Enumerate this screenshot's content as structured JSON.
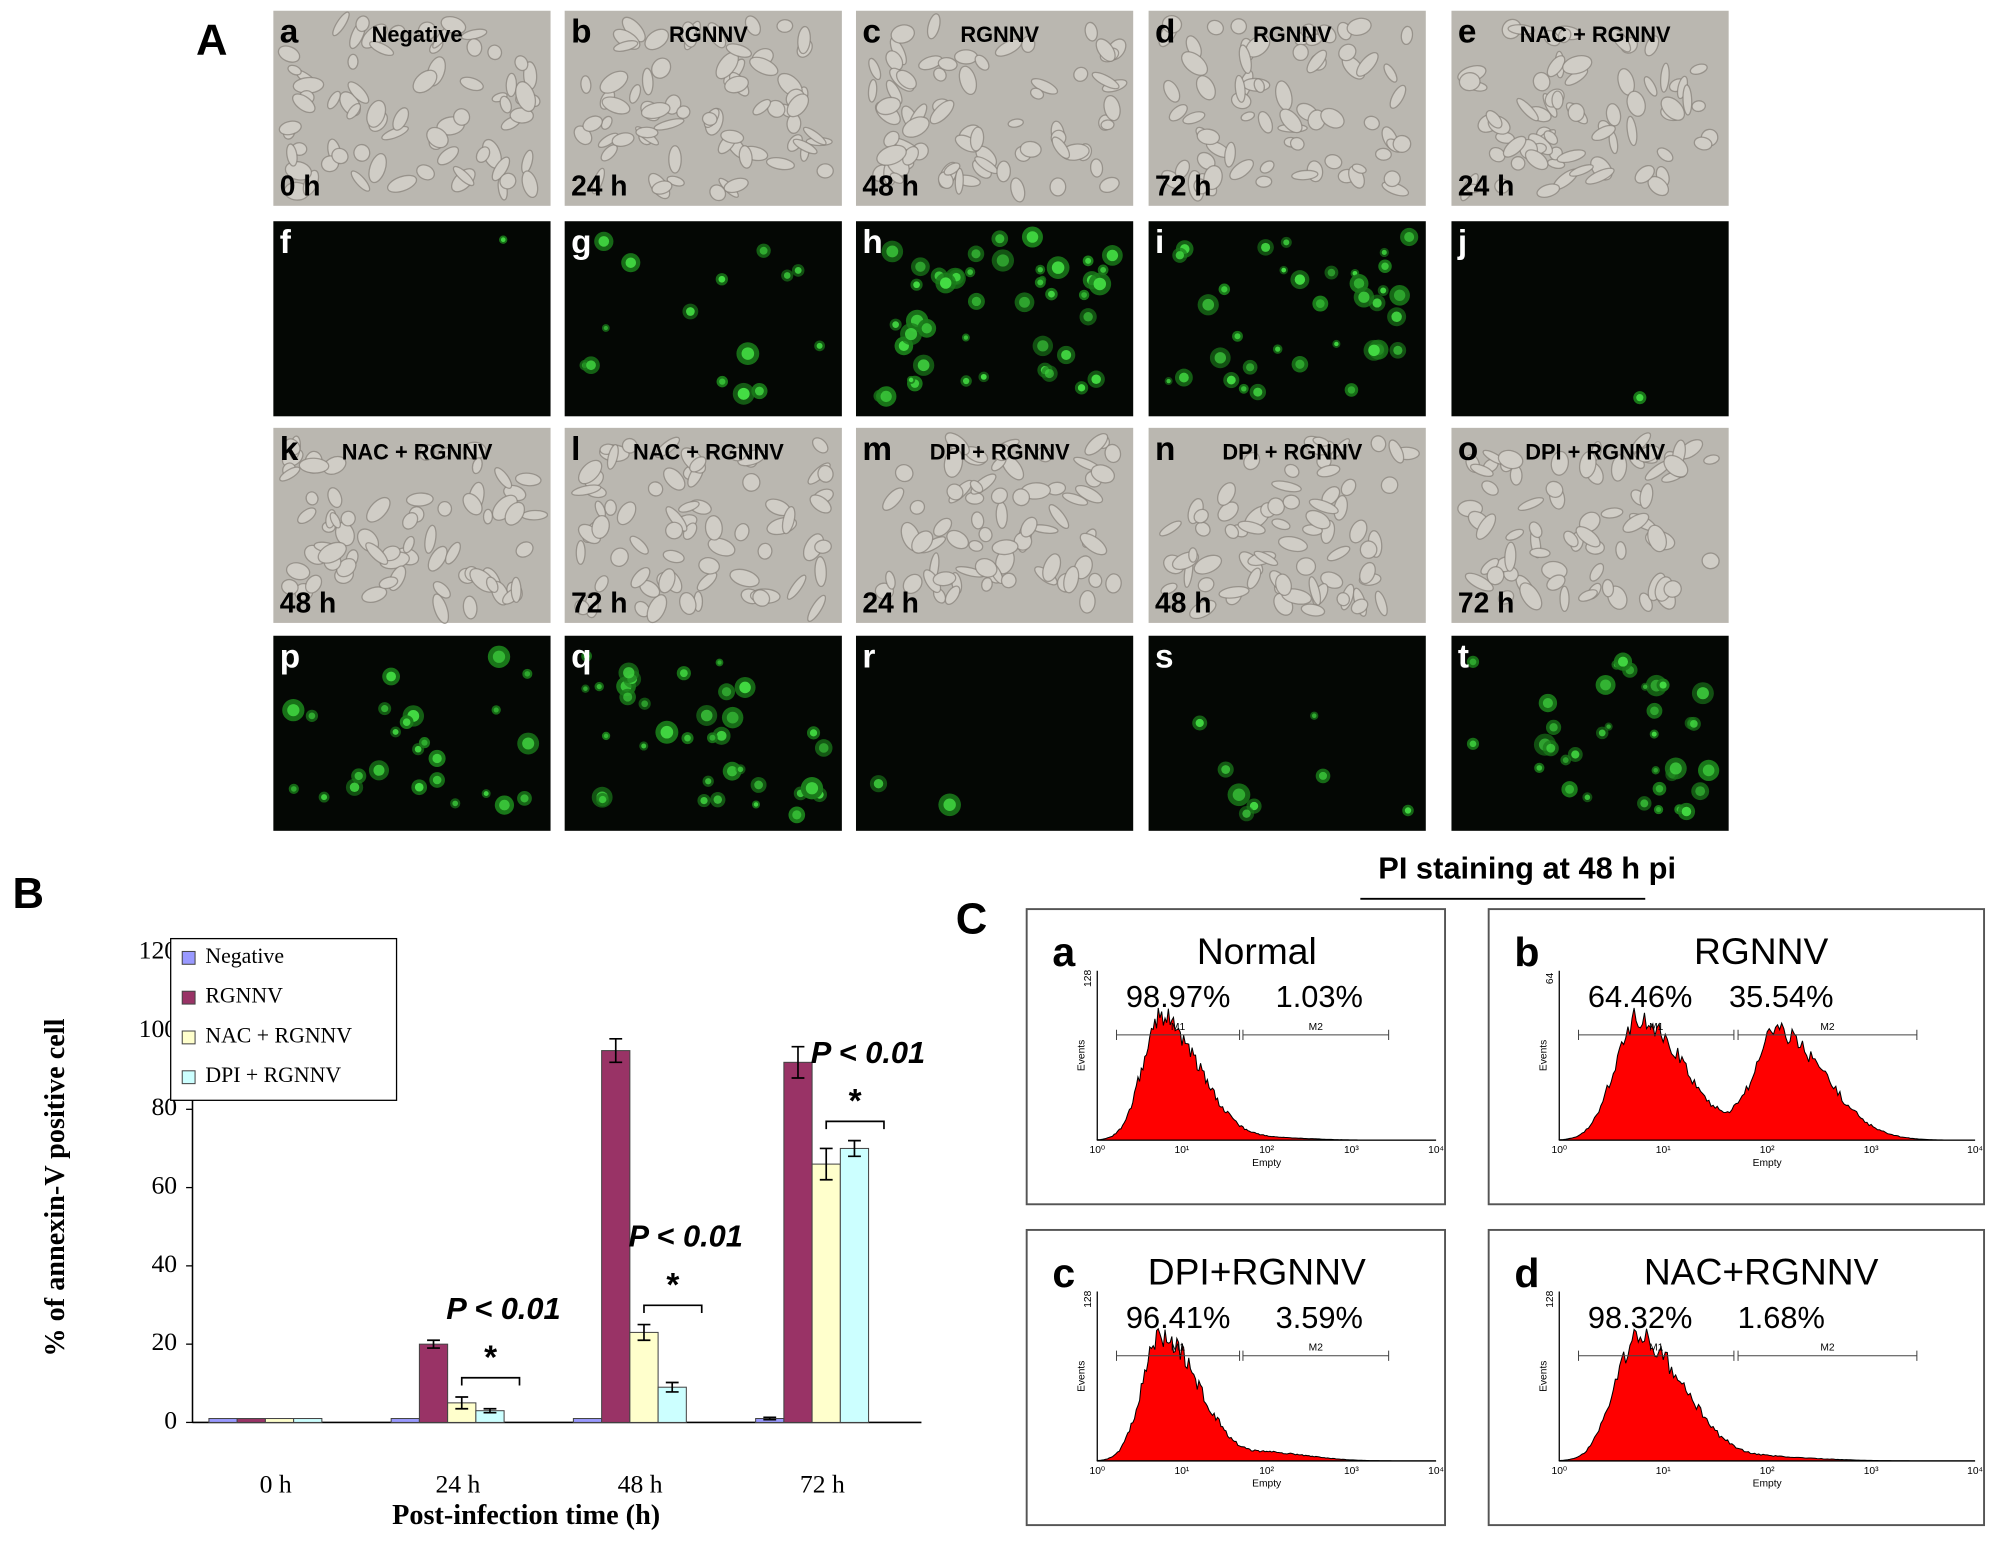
{
  "panel_a": {
    "label": "A",
    "rows": [
      [
        {
          "letter": "a",
          "label": "Negative",
          "time": "0 h"
        },
        {
          "letter": "b",
          "label": "RGNNV",
          "time": "24 h"
        },
        {
          "letter": "c",
          "label": "RGNNV",
          "time": "48 h"
        },
        {
          "letter": "d",
          "label": "RGNNV",
          "time": "72 h"
        },
        {
          "letter": "e",
          "label": "NAC + RGNNV",
          "time": "24 h"
        }
      ],
      [
        {
          "letter": "f"
        },
        {
          "letter": "g"
        },
        {
          "letter": "h"
        },
        {
          "letter": "i"
        },
        {
          "letter": "j"
        }
      ],
      [
        {
          "letter": "k",
          "label": "NAC + RGNNV",
          "time": "48 h"
        },
        {
          "letter": "l",
          "label": "NAC + RGNNV",
          "time": "72 h"
        },
        {
          "letter": "m",
          "label": "DPI + RGNNV",
          "time": "24 h"
        },
        {
          "letter": "n",
          "label": "DPI + RGNNV",
          "time": "48 h"
        },
        {
          "letter": "o",
          "label": "DPI + RGNNV",
          "time": "72 h"
        }
      ],
      [
        {
          "letter": "p"
        },
        {
          "letter": "q"
        },
        {
          "letter": "r"
        },
        {
          "letter": "s"
        },
        {
          "letter": "t"
        }
      ]
    ]
  },
  "chart_data": {
    "type": "bar",
    "label": "B",
    "ylabel": "% of annexin-V positive cell",
    "xlabel": "Post-infection time (h)",
    "categories": [
      "0 h",
      "24 h",
      "48 h",
      "72 h"
    ],
    "series": [
      {
        "name": "Negative",
        "color": "#9999ff",
        "values": [
          1,
          1,
          1,
          1
        ],
        "errors": [
          0,
          0,
          0,
          0.3
        ]
      },
      {
        "name": "RGNNV",
        "color": "#993366",
        "values": [
          1,
          20,
          95,
          92
        ],
        "errors": [
          0,
          1,
          3,
          4
        ]
      },
      {
        "name": "NAC + RGNNV",
        "color": "#ffffcc",
        "values": [
          1,
          5,
          23,
          66
        ],
        "errors": [
          0,
          1.5,
          2,
          4
        ]
      },
      {
        "name": "DPI + RGNNV",
        "color": "#ccffff",
        "values": [
          1,
          3,
          9,
          70
        ],
        "errors": [
          0,
          0.5,
          1.2,
          2
        ]
      }
    ],
    "ylim": [
      0,
      120
    ],
    "yticks": [
      0,
      20,
      40,
      60,
      80,
      100,
      120
    ],
    "annotations": [
      {
        "category": 1,
        "p": "P < 0.01",
        "star": "*"
      },
      {
        "category": 2,
        "p": "P < 0.01",
        "star": "*"
      },
      {
        "category": 3,
        "p": "P < 0.01",
        "star": "*"
      }
    ]
  },
  "panel_c": {
    "label": "C",
    "title": "PI staining at 48 h pi",
    "x_axis_label": "Empty",
    "y_axis_label": "Events",
    "x_ticks": [
      "10⁰",
      "10¹",
      "10²",
      "10³",
      "10⁴"
    ],
    "gates": [
      "M1",
      "M2"
    ],
    "plots": [
      {
        "letter": "a",
        "title": "Normal",
        "ymax": "128",
        "percentages": [
          {
            "value": 98.97,
            "label": "98.97%"
          },
          {
            "value": 1.03,
            "label": "1.03%"
          }
        ]
      },
      {
        "letter": "b",
        "title": "RGNNV",
        "ymax": "64",
        "percentages": [
          {
            "value": 64.46,
            "label": "64.46%"
          },
          {
            "value": 35.54,
            "label": "35.54%"
          }
        ]
      },
      {
        "letter": "c",
        "title": "DPI+RGNNV",
        "ymax": "128",
        "percentages": [
          {
            "value": 96.41,
            "label": "96.41%"
          },
          {
            "value": 3.59,
            "label": "3.59%"
          }
        ]
      },
      {
        "letter": "d",
        "title": "NAC+RGNNV",
        "ymax": "128",
        "percentages": [
          {
            "value": 98.32,
            "label": "98.32%"
          },
          {
            "value": 1.68,
            "label": "1.68%"
          }
        ]
      }
    ]
  }
}
